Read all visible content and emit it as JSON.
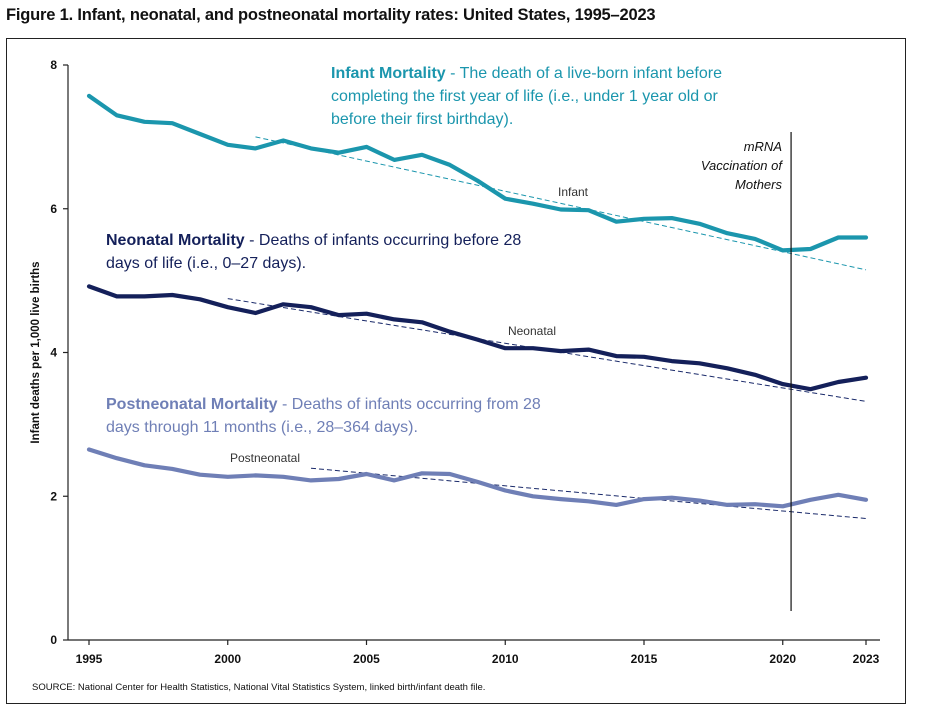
{
  "figure": {
    "title": "Figure 1. Infant, neonatal, and postneonatal mortality rates: United States, 1995–2023",
    "source": "SOURCE: National Center for Health Statistics, National Vital Statistics System, linked birth/infant death file."
  },
  "annotations": {
    "infant": {
      "heading": "Infant Mortality",
      "text": " -  The death of a live-born infant before completing the first year of life (i.e., under 1 year old or before their first birthday).",
      "color": "#1b96ad"
    },
    "neonatal": {
      "heading": "Neonatal Mortality",
      "text": " -  Deaths of infants occurring before 28 days of life (i.e., 0–27 days).",
      "color": "#14205a"
    },
    "postneonatal": {
      "heading": "Postneonatal Mortality",
      "text": " -  Deaths of infants occurring from 28 days through 11 months (i.e., 28–364 days).",
      "color": "#6f7fb6"
    },
    "vaccination": {
      "line1": "mRNA",
      "line2": "Vaccination of",
      "line3": "Mothers",
      "year": 2020.3
    }
  },
  "chart_data": {
    "type": "line",
    "title": "Infant, neonatal, and postneonatal mortality rates: United States, 1995–2023",
    "xlabel": "",
    "ylabel": "Infant deaths per 1,000 live births",
    "xlim": [
      1995,
      2023
    ],
    "ylim": [
      0,
      8
    ],
    "x_ticks": [
      1995,
      2000,
      2005,
      2010,
      2015,
      2020,
      2023
    ],
    "y_ticks": [
      0,
      2,
      4,
      6,
      8
    ],
    "grid": false,
    "x": [
      1995,
      1996,
      1997,
      1998,
      1999,
      2000,
      2001,
      2002,
      2003,
      2004,
      2005,
      2006,
      2007,
      2008,
      2009,
      2010,
      2011,
      2012,
      2013,
      2014,
      2015,
      2016,
      2017,
      2018,
      2019,
      2020,
      2021,
      2022,
      2023
    ],
    "series": [
      {
        "name": "Infant",
        "color": "#1b96ad",
        "values": [
          7.57,
          7.3,
          7.21,
          7.19,
          7.04,
          6.89,
          6.84,
          6.95,
          6.84,
          6.78,
          6.86,
          6.68,
          6.75,
          6.61,
          6.39,
          6.14,
          6.07,
          5.99,
          5.98,
          5.82,
          5.86,
          5.87,
          5.79,
          5.66,
          5.58,
          5.42,
          5.44,
          5.6,
          5.6
        ],
        "trend": {
          "x": [
            2001,
            2023
          ],
          "y": [
            7.0,
            5.15
          ]
        }
      },
      {
        "name": "Neonatal",
        "color": "#14205a",
        "values": [
          4.92,
          4.78,
          4.78,
          4.8,
          4.74,
          4.63,
          4.55,
          4.67,
          4.63,
          4.52,
          4.54,
          4.46,
          4.42,
          4.29,
          4.18,
          4.06,
          4.06,
          4.02,
          4.04,
          3.95,
          3.94,
          3.88,
          3.85,
          3.78,
          3.69,
          3.56,
          3.49,
          3.59,
          3.65
        ],
        "trend": {
          "x": [
            2000,
            2023
          ],
          "y": [
            4.75,
            3.32
          ]
        }
      },
      {
        "name": "Postneonatal",
        "color": "#6f7fb6",
        "values": [
          2.65,
          2.53,
          2.43,
          2.38,
          2.3,
          2.27,
          2.29,
          2.27,
          2.22,
          2.24,
          2.31,
          2.22,
          2.32,
          2.31,
          2.2,
          2.08,
          2.0,
          1.96,
          1.93,
          1.88,
          1.96,
          1.98,
          1.94,
          1.88,
          1.89,
          1.86,
          1.95,
          2.02,
          1.95
        ],
        "trend": {
          "x": [
            2003,
            2023
          ],
          "y": [
            2.39,
            1.69
          ]
        }
      }
    ]
  }
}
